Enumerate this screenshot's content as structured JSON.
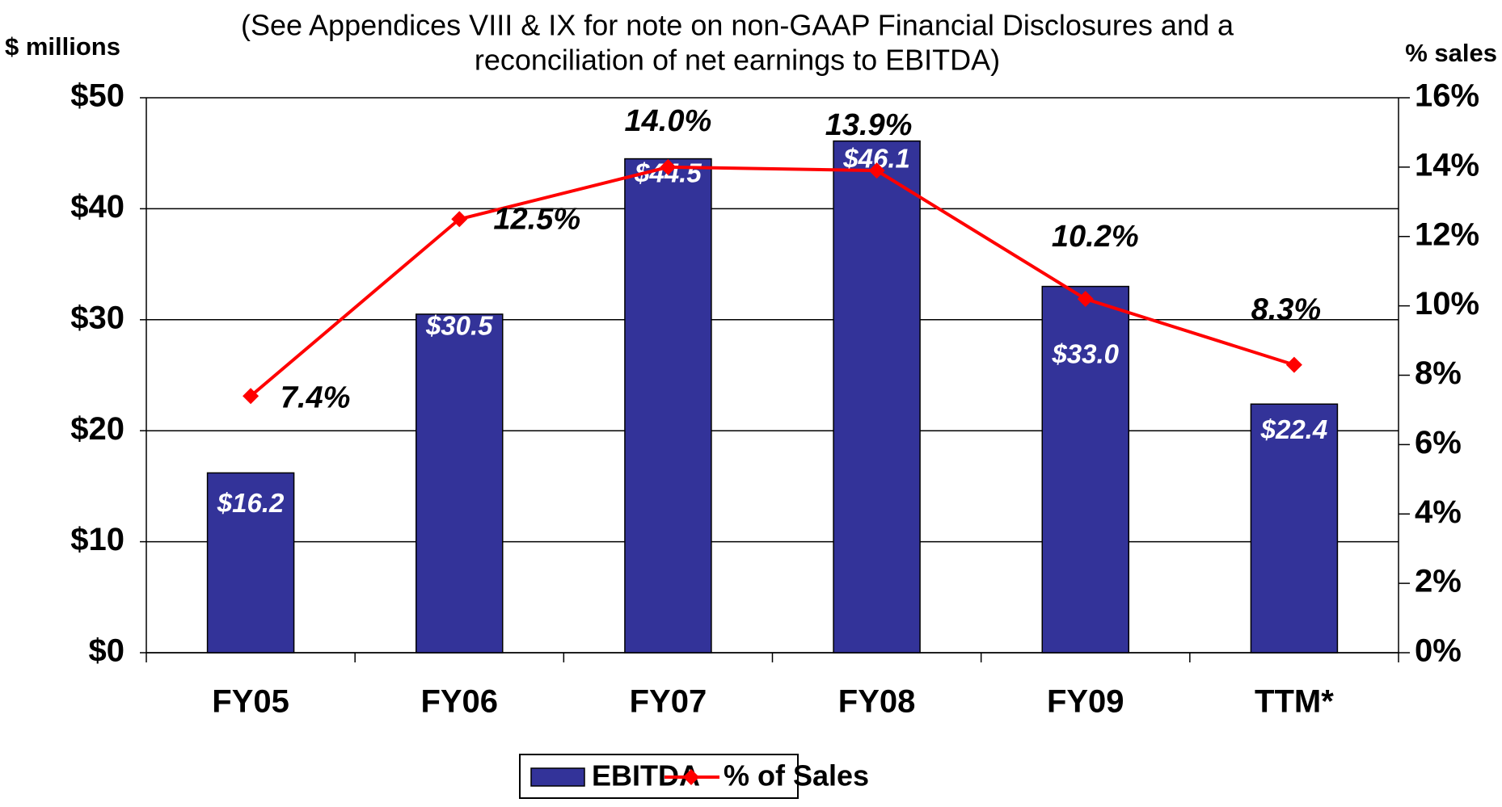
{
  "chart_data": {
    "type": "bar_line",
    "title": "(See Appendices VIII & IX for note on non-GAAP Financial Disclosures and a",
    "subtitle": "reconciliation of net earnings to EBITDA)",
    "y_label": "$ millions",
    "y2_label": "% sales",
    "categories": [
      "FY05",
      "FY06",
      "FY07",
      "FY08",
      "FY09",
      "TTM*"
    ],
    "series": [
      {
        "name": "EBITDA",
        "type": "bar",
        "color": "#333399",
        "values": [
          16.2,
          30.5,
          44.5,
          46.1,
          33.0,
          22.4
        ],
        "value_labels": [
          "$16.2",
          "$30.5",
          "$44.5",
          "$46.1",
          "$33.0",
          "$22.4"
        ]
      },
      {
        "name": "% of Sales",
        "type": "line",
        "axis": "y2",
        "color": "#ff0000",
        "values": [
          7.4,
          12.5,
          14.0,
          13.9,
          10.2,
          8.3
        ],
        "value_labels": [
          "7.4%",
          "12.5%",
          "14.0%",
          "13.9%",
          "10.2%",
          "8.3%"
        ]
      }
    ],
    "ylim": [
      0,
      50
    ],
    "yticks": [
      {
        "value": 0,
        "label": "$0"
      },
      {
        "value": 10,
        "label": "$10"
      },
      {
        "value": 20,
        "label": "$20"
      },
      {
        "value": 30,
        "label": "$30"
      },
      {
        "value": 40,
        "label": "$40"
      },
      {
        "value": 50,
        "label": "$50"
      }
    ],
    "y2lim": [
      0,
      16
    ],
    "y2ticks": [
      {
        "value": 0,
        "label": "0%"
      },
      {
        "value": 2,
        "label": "2%"
      },
      {
        "value": 4,
        "label": "4%"
      },
      {
        "value": 6,
        "label": "6%"
      },
      {
        "value": 8,
        "label": "8%"
      },
      {
        "value": 10,
        "label": "10%"
      },
      {
        "value": 12,
        "label": "12%"
      },
      {
        "value": 14,
        "label": "14%"
      },
      {
        "value": 16,
        "label": "16%"
      }
    ],
    "grid": true,
    "legend": "bottom"
  }
}
